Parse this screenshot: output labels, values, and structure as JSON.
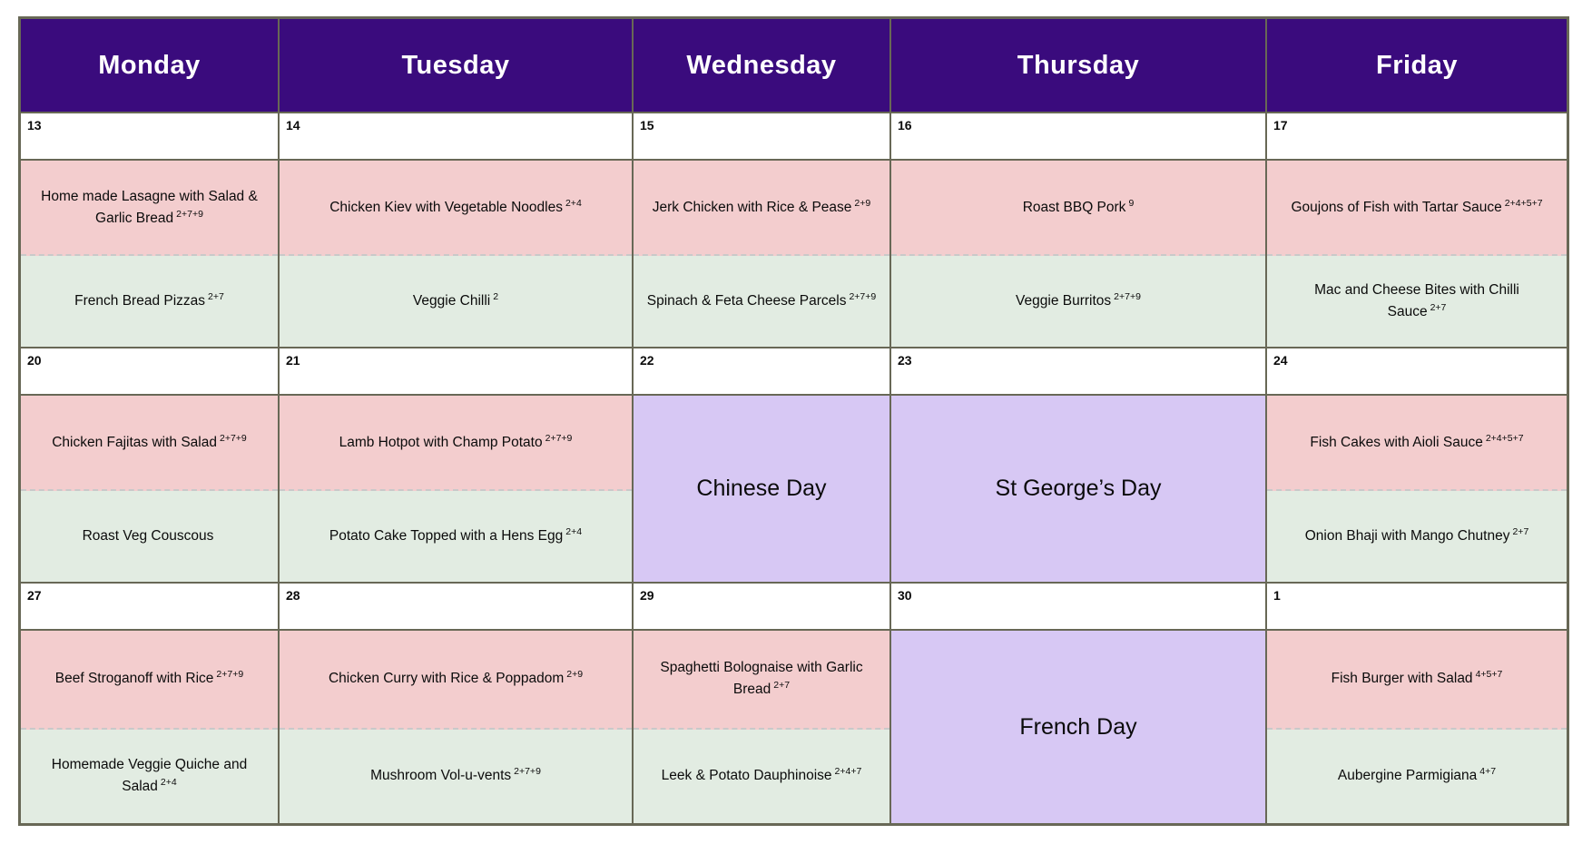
{
  "header": {
    "days": [
      "Monday",
      "Tuesday",
      "Wednesday",
      "Thursday",
      "Friday"
    ]
  },
  "weeks": [
    {
      "cells": [
        {
          "date": "13",
          "meat": {
            "name": "Home made Lasagne with Salad & Garlic Bread",
            "allergens": "2+7+9"
          },
          "veg": {
            "name": "French Bread Pizzas",
            "allergens": "2+7"
          }
        },
        {
          "date": "14",
          "meat": {
            "name": "Chicken Kiev with Vegetable Noodles",
            "allergens": "2+4"
          },
          "veg": {
            "name": "Veggie Chilli",
            "allergens": "2"
          }
        },
        {
          "date": "15",
          "meat": {
            "name": "Jerk Chicken with Rice & Pease",
            "allergens": "2+9"
          },
          "veg": {
            "name": "Spinach & Feta Cheese Parcels",
            "allergens": "2+7+9"
          }
        },
        {
          "date": "16",
          "meat": {
            "name": "Roast BBQ Pork",
            "allergens": "9"
          },
          "veg": {
            "name": "Veggie Burritos",
            "allergens": "2+7+9"
          }
        },
        {
          "date": "17",
          "meat": {
            "name": "Goujons of Fish with Tartar Sauce",
            "allergens": "2+4+5+7"
          },
          "veg": {
            "name": "Mac and Cheese Bites with Chilli Sauce",
            "allergens": "2+7"
          }
        }
      ]
    },
    {
      "cells": [
        {
          "date": "20",
          "meat": {
            "name": "Chicken Fajitas with Salad",
            "allergens": "2+7+9"
          },
          "veg": {
            "name": "Roast Veg Couscous",
            "allergens": ""
          }
        },
        {
          "date": "21",
          "meat": {
            "name": "Lamb Hotpot with Champ Potato",
            "allergens": "2+7+9"
          },
          "veg": {
            "name": "Potato Cake Topped with a Hens Egg",
            "allergens": "2+4"
          }
        },
        {
          "date": "22",
          "special": "Chinese Day"
        },
        {
          "date": "23",
          "special": "St George’s Day"
        },
        {
          "date": "24",
          "meat": {
            "name": "Fish Cakes with Aioli Sauce",
            "allergens": "2+4+5+7"
          },
          "veg": {
            "name": "Onion Bhaji with Mango Chutney",
            "allergens": "2+7"
          }
        }
      ]
    },
    {
      "cells": [
        {
          "date": "27",
          "meat": {
            "name": "Beef Stroganoff with Rice",
            "allergens": "2+7+9"
          },
          "veg": {
            "name": "Homemade Veggie Quiche and Salad",
            "allergens": "2+4"
          }
        },
        {
          "date": "28",
          "meat": {
            "name": "Chicken Curry with Rice & Poppadom",
            "allergens": "2+9"
          },
          "veg": {
            "name": "Mushroom Vol-u-vents",
            "allergens": "2+7+9"
          }
        },
        {
          "date": "29",
          "meat": {
            "name": "Spaghetti Bolognaise with Garlic Bread",
            "allergens": "2+7"
          },
          "veg": {
            "name": "Leek & Potato Dauphinoise",
            "allergens": "2+4+7"
          }
        },
        {
          "date": "30",
          "special": "French Day"
        },
        {
          "date": "1",
          "meat": {
            "name": "Fish Burger with Salad",
            "allergens": "4+5+7"
          },
          "veg": {
            "name": "Aubergine Parmigiana",
            "allergens": "4+7"
          }
        }
      ]
    }
  ],
  "colors": {
    "header_bg": "#3a0b7d",
    "header_text": "#ffffff",
    "meat_bg": "#f3cdce",
    "veg_bg": "#e2ece2",
    "special_bg": "#d7c8f4",
    "border": "#686856",
    "dashed": "#c9c9c9",
    "text": "#0b0b0b",
    "page_bg": "#ffffff"
  }
}
